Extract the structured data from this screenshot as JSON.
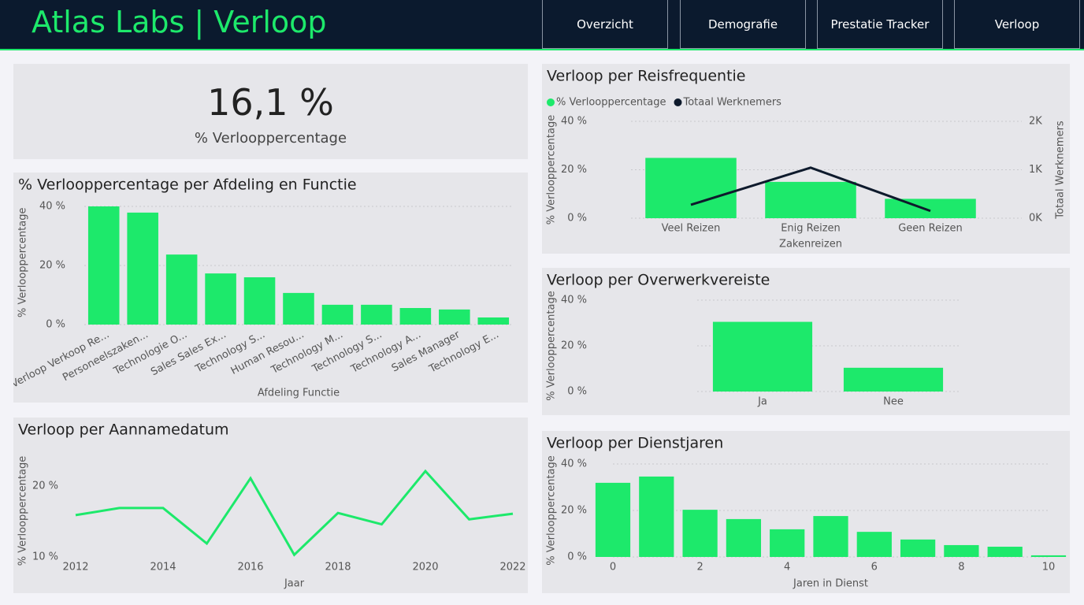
{
  "header": {
    "title": "Atlas Labs | Verloop"
  },
  "nav": [
    "Overzicht",
    "Demografie",
    "Prestatie Tracker",
    "Verloop"
  ],
  "kpi": {
    "value": "16,1 %",
    "label": "% Verlooppercentage"
  },
  "chart_data": [
    {
      "type": "bar",
      "title": "% Verlooppercentage per Afdeling en Functie",
      "x_label": "Afdeling Functie",
      "y_label": "% Verlooppercentage",
      "categories": [
        "Verloop Verkoop Re...",
        "Personeelszaken...",
        "Technologie O...",
        "Sales Sales Ex...",
        "Technology S...",
        "Human Resou...",
        "Technology M...",
        "Technology S...",
        "Technology A...",
        "Sales Manager",
        "Technology E..."
      ],
      "values": [
        40,
        37.9,
        23.7,
        17.3,
        16,
        10.7,
        6.7,
        6.7,
        5.6,
        5.1,
        2.4
      ],
      "color": "#1de96b",
      "ylim": [
        0,
        42
      ],
      "yticks": [
        {
          "value": 0,
          "label": "0 %"
        },
        {
          "value": 20,
          "label": "20 %"
        },
        {
          "value": 40,
          "label": "40 %"
        }
      ],
      "grid": true
    },
    {
      "type": "line",
      "title": "Verloop per Aannamedatum",
      "x_label": "Jaar",
      "y_label": "% Verlooppercentage",
      "x": [
        2012,
        2013,
        2014,
        2015,
        2016,
        2017,
        2018,
        2019,
        2020,
        2021,
        2022
      ],
      "values": [
        15.9,
        16.9,
        16.9,
        11.9,
        21.1,
        10.3,
        16.2,
        14.6,
        22.1,
        15.3,
        16.1
      ],
      "color": "#1de96b",
      "xlim": [
        2012,
        2022
      ],
      "xticks": [
        2012,
        2014,
        2016,
        2018,
        2020,
        2022
      ],
      "ylim": [
        10,
        23
      ],
      "yticks": [
        {
          "value": 10,
          "label": "10 %"
        },
        {
          "value": 20,
          "label": "20 %"
        }
      ],
      "grid": false
    },
    {
      "type": "combo",
      "title": "Verloop per Reisfrequentie",
      "x_label": "Zakenreizen",
      "y_label": "% Verlooppercentage",
      "y2_label": "Totaal Werknemers",
      "categories": [
        "Veel Reizen",
        "Enig Reizen",
        "Geen Reizen"
      ],
      "series": [
        {
          "name": "% Verlooppercentage",
          "type": "bar",
          "color": "#1de96b",
          "values": [
            24.9,
            15,
            8
          ]
        },
        {
          "name": "Totaal Werknemers",
          "type": "line",
          "axis": "y2",
          "color": "#0e1a2c",
          "values": [
            277,
            1043,
            150
          ]
        }
      ],
      "ylim": [
        0,
        40
      ],
      "yticks": [
        {
          "value": 0,
          "label": "0 %"
        },
        {
          "value": 20,
          "label": "20 %"
        },
        {
          "value": 40,
          "label": "40 %"
        }
      ],
      "y2lim": [
        0,
        2000
      ],
      "y2ticks": [
        {
          "value": 0,
          "label": "0K"
        },
        {
          "value": 1000,
          "label": "1K"
        },
        {
          "value": 2000,
          "label": "2K"
        }
      ],
      "legend": "top-left",
      "grid": true
    },
    {
      "type": "bar",
      "title": "Verloop per Overwerkvereiste",
      "y_label": "% Verlooppercentage",
      "categories": [
        "Ja",
        "Nee"
      ],
      "values": [
        30.5,
        10.4
      ],
      "color": "#1de96b",
      "ylim": [
        0,
        40
      ],
      "yticks": [
        {
          "value": 0,
          "label": "0 %"
        },
        {
          "value": 20,
          "label": "20 %"
        },
        {
          "value": 40,
          "label": "40 %"
        }
      ],
      "grid": true
    },
    {
      "type": "bar",
      "title": "Verloop per Dienstjaren",
      "x_label": "Jaren in Dienst",
      "y_label": "% Verlooppercentage",
      "x": [
        0,
        1,
        2,
        3,
        4,
        5,
        6,
        7,
        8,
        9,
        10
      ],
      "values": [
        31.9,
        34.6,
        20.3,
        16.3,
        11.9,
        17.6,
        10.8,
        7.5,
        5.1,
        4.4,
        0.7
      ],
      "color": "#1de96b",
      "xlim": [
        0,
        10
      ],
      "xticks": [
        0,
        2,
        4,
        6,
        8,
        10
      ],
      "ylim": [
        0,
        40
      ],
      "yticks": [
        {
          "value": 0,
          "label": "0 %"
        },
        {
          "value": 20,
          "label": "20 %"
        },
        {
          "value": 40,
          "label": "40 %"
        }
      ],
      "grid": true
    }
  ]
}
